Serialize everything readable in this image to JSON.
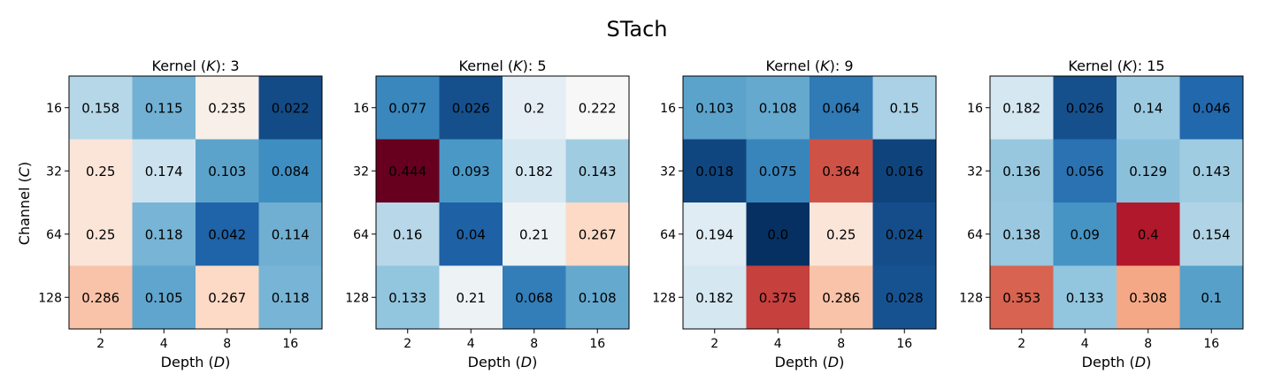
{
  "chart_data": {
    "type": "heatmap",
    "title": "STach",
    "xlabel": "Depth",
    "xlabel_symbol": "D",
    "ylabel": "Channel",
    "ylabel_symbol": "C",
    "x_categories": [
      "2",
      "4",
      "8",
      "16"
    ],
    "y_categories": [
      "16",
      "32",
      "64",
      "128"
    ],
    "colormap": "RdBu_r",
    "color_range": [
      0,
      0.444
    ],
    "panels": [
      {
        "title_prefix": "Kernel",
        "title_symbol": "K",
        "title_value": "3",
        "values": [
          [
            "0.158",
            "0.115",
            "0.235",
            "0.022"
          ],
          [
            "0.25",
            "0.174",
            "0.103",
            "0.084"
          ],
          [
            "0.25",
            "0.118",
            "0.042",
            "0.114"
          ],
          [
            "0.286",
            "0.105",
            "0.267",
            "0.118"
          ]
        ]
      },
      {
        "title_prefix": "Kernel",
        "title_symbol": "K",
        "title_value": "5",
        "values": [
          [
            "0.077",
            "0.026",
            "0.2",
            "0.222"
          ],
          [
            "0.444",
            "0.093",
            "0.182",
            "0.143"
          ],
          [
            "0.16",
            "0.04",
            "0.21",
            "0.267"
          ],
          [
            "0.133",
            "0.21",
            "0.068",
            "0.108"
          ]
        ]
      },
      {
        "title_prefix": "Kernel",
        "title_symbol": "K",
        "title_value": "9",
        "values": [
          [
            "0.103",
            "0.108",
            "0.064",
            "0.15"
          ],
          [
            "0.018",
            "0.075",
            "0.364",
            "0.016"
          ],
          [
            "0.194",
            "0.0",
            "0.25",
            "0.024"
          ],
          [
            "0.182",
            "0.375",
            "0.286",
            "0.028"
          ]
        ]
      },
      {
        "title_prefix": "Kernel",
        "title_symbol": "K",
        "title_value": "15",
        "values": [
          [
            "0.182",
            "0.026",
            "0.14",
            "0.046"
          ],
          [
            "0.136",
            "0.056",
            "0.129",
            "0.143"
          ],
          [
            "0.138",
            "0.09",
            "0.4",
            "0.154"
          ],
          [
            "0.353",
            "0.133",
            "0.308",
            "0.1"
          ]
        ]
      }
    ]
  }
}
